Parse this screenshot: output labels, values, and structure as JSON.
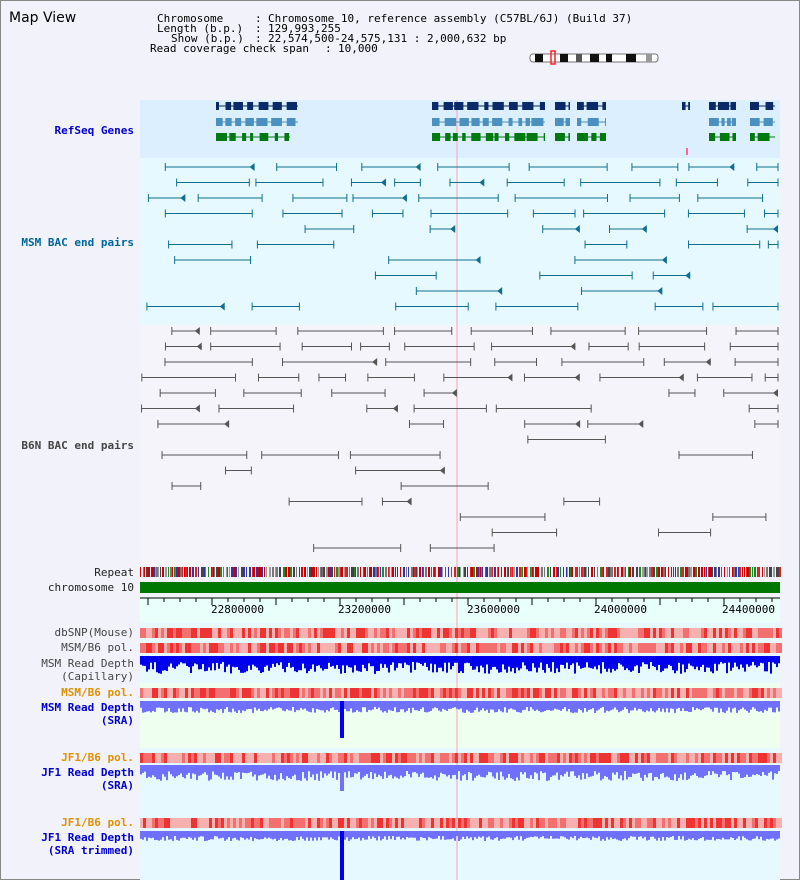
{
  "title": "Map View",
  "header": {
    "chromosome_key": "Chromosome",
    "chromosome_val": "Chromosome 10, reference assembly (C57BL/6J) (Build 37)",
    "length_key": "Length (b.p.)",
    "length_val": "129,993,255",
    "show_key": "Show (b.p.)",
    "show_val": "22,574,500-24,575,131 : 2,000,632 bp",
    "span_key": "Read coverage check span",
    "span_val": "10,000"
  },
  "tracks": {
    "refseq": "RefSeq Genes",
    "msm_bac": "MSM BAC end pairs",
    "b6n_bac": "B6N BAC end pairs",
    "repeat": "Repeat",
    "chromosome": "chromosome 10",
    "dbsnp": "dbSNP(Mouse)",
    "msm_b6_pol_1": "MSM/B6 pol.",
    "msm_depth_cap_1": "MSM Read Depth",
    "msm_depth_cap_2": "(Capillary)",
    "msm_b6_pol_2": "MSM/B6 pol.",
    "msm_depth_sra_1": "MSM Read Depth",
    "msm_depth_sra_2": "(SRA)",
    "jf1_b6_pol_1": "JF1/B6 pol.",
    "jf1_depth_sra_1": "JF1 Read Depth",
    "jf1_depth_sra_2": "(SRA)",
    "jf1_b6_pol_2": "JF1/B6 pol.",
    "jf1_depth_trim_1": "JF1 Read Depth",
    "jf1_depth_trim_2": "(SRA trimmed)"
  },
  "axis": {
    "ticks": [
      "22800000",
      "23200000",
      "23600000",
      "24000000",
      "24400000"
    ]
  },
  "colors": {
    "refseq_bg": "#dcefff",
    "msm_bg": "#e6f9ff",
    "b6n_bg": "#f4f4fa",
    "gene_navy": "#0a2a6a",
    "gene_teal": "#4a90c0",
    "gene_green": "#007a10",
    "bac_teal": "#0f6f8f",
    "bac_grey": "#555555",
    "chrom": "#007700",
    "depth_blue": "#0000ee",
    "depth_light": "#7070ff"
  }
}
